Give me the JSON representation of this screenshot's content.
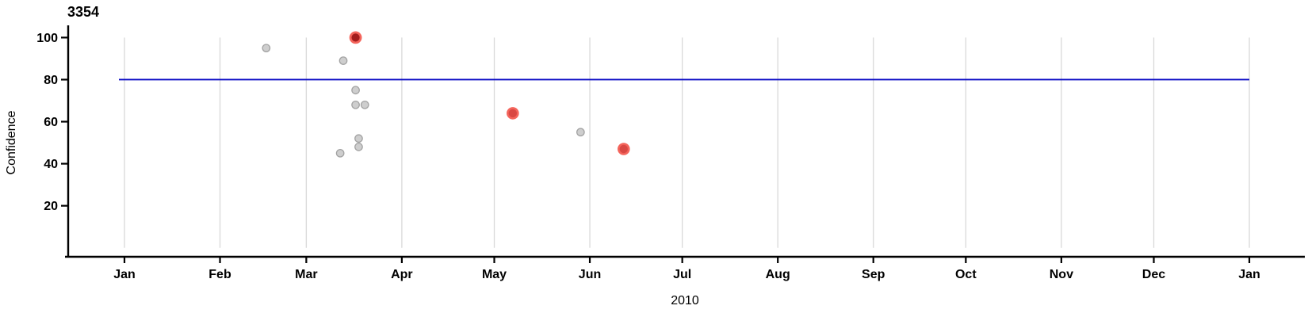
{
  "chart_data": {
    "type": "scatter",
    "title": "3354",
    "xlabel": "2010",
    "ylabel": "Confidence",
    "x_axis": {
      "start": "2010-01-01",
      "end": "2011-01-01",
      "tick_dates": [
        "2010-01-01",
        "2010-02-01",
        "2010-03-01",
        "2010-04-01",
        "2010-05-01",
        "2010-06-01",
        "2010-07-01",
        "2010-08-01",
        "2010-09-01",
        "2010-10-01",
        "2010-11-01",
        "2010-12-01",
        "2011-01-01"
      ],
      "tick_labels": [
        "Jan",
        "Feb",
        "Mar",
        "Apr",
        "May",
        "Jun",
        "Jul",
        "Aug",
        "Sep",
        "Oct",
        "Nov",
        "Dec",
        "Jan"
      ]
    },
    "y_axis": {
      "ticks": [
        20,
        40,
        60,
        80,
        100
      ],
      "range": [
        0,
        105
      ],
      "grid_span": [
        0,
        100
      ]
    },
    "grid": "vertical-month-lines",
    "legend": "none",
    "threshold_line": {
      "y": 80,
      "color": "#0a0ac4"
    },
    "points": [
      {
        "date": "2010-02-16",
        "confidence": 95,
        "style": "gray"
      },
      {
        "date": "2010-03-13",
        "confidence": 89,
        "style": "gray"
      },
      {
        "date": "2010-03-17",
        "confidence": 75,
        "style": "gray"
      },
      {
        "date": "2010-03-17",
        "confidence": 68,
        "style": "gray"
      },
      {
        "date": "2010-03-20",
        "confidence": 68,
        "style": "gray"
      },
      {
        "date": "2010-03-18",
        "confidence": 52,
        "style": "gray"
      },
      {
        "date": "2010-03-18",
        "confidence": 48,
        "style": "gray"
      },
      {
        "date": "2010-03-12",
        "confidence": 45,
        "style": "gray"
      },
      {
        "date": "2010-05-29",
        "confidence": 55,
        "style": "gray"
      },
      {
        "date": "2010-03-17",
        "confidence": 100,
        "style": "red-dark"
      },
      {
        "date": "2010-05-07",
        "confidence": 64,
        "style": "red"
      },
      {
        "date": "2010-06-12",
        "confidence": 47,
        "style": "red"
      }
    ],
    "point_styles": {
      "gray": {
        "fill": "#cecece",
        "stroke": "#a3a3a3",
        "r": 4.7,
        "stroke_width": 1.3
      },
      "red": {
        "fill": "#d94843",
        "stroke": "#f4655c",
        "r": 6.5,
        "stroke_width": 2.6
      },
      "red-dark": {
        "fill": "#a31d1d",
        "stroke": "#f4655c",
        "r": 6.5,
        "stroke_width": 2.8
      }
    },
    "colors": {
      "axis": "#000000",
      "gridline": "#d9d9d9",
      "tick_text": "#000000"
    }
  }
}
